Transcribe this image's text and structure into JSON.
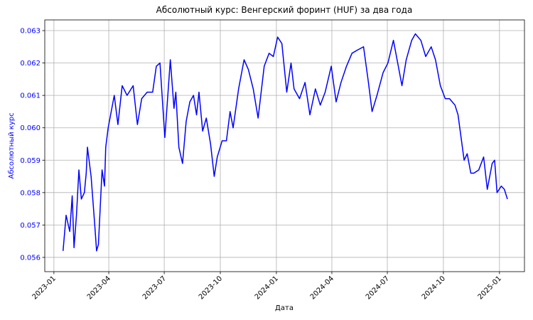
{
  "chart_data": {
    "type": "line",
    "title": "Абсолютный курс: Венгерский форинт (HUF) за два года",
    "x_label": "Дата",
    "y_label": "Абсолютный курс",
    "color": "#0000ff",
    "axis_label_color": "#0000ff",
    "grid": true,
    "x": [
      "2023-01-16",
      "2023-01-21",
      "2023-01-27",
      "2023-01-31",
      "2023-02-03",
      "2023-02-07",
      "2023-02-11",
      "2023-02-15",
      "2023-02-20",
      "2023-02-23",
      "2023-02-25",
      "2023-03-03",
      "2023-03-09",
      "2023-03-12",
      "2023-03-15",
      "2023-03-21",
      "2023-03-25",
      "2023-03-27",
      "2023-03-31",
      "2023-04-04",
      "2023-04-10",
      "2023-04-16",
      "2023-04-23",
      "2023-05-01",
      "2023-05-11",
      "2023-05-18",
      "2023-05-25",
      "2023-06-03",
      "2023-06-12",
      "2023-06-18",
      "2023-06-24",
      "2023-07-02",
      "2023-07-11",
      "2023-07-17",
      "2023-07-20",
      "2023-07-25",
      "2023-07-31",
      "2023-08-06",
      "2023-08-12",
      "2023-08-18",
      "2023-08-23",
      "2023-08-27",
      "2023-09-02",
      "2023-09-08",
      "2023-09-15",
      "2023-09-21",
      "2023-09-26",
      "2023-10-04",
      "2023-10-11",
      "2023-10-17",
      "2023-10-22",
      "2023-10-31",
      "2023-11-09",
      "2023-11-16",
      "2023-11-24",
      "2023-12-02",
      "2023-12-12",
      "2023-12-20",
      "2023-12-27",
      "2024-01-03",
      "2024-01-10",
      "2024-01-18",
      "2024-01-25",
      "2024-01-30",
      "2024-02-08",
      "2024-02-17",
      "2024-02-25",
      "2024-03-05",
      "2024-03-13",
      "2024-03-21",
      "2024-03-31",
      "2024-04-08",
      "2024-04-16",
      "2024-04-25",
      "2024-05-04",
      "2024-05-13",
      "2024-05-23",
      "2024-05-31",
      "2024-06-06",
      "2024-06-14",
      "2024-06-24",
      "2024-07-02",
      "2024-07-11",
      "2024-07-19",
      "2024-07-25",
      "2024-08-01",
      "2024-08-10",
      "2024-08-16",
      "2024-08-25",
      "2024-09-02",
      "2024-09-11",
      "2024-09-18",
      "2024-09-26",
      "2024-10-04",
      "2024-10-11",
      "2024-10-20",
      "2024-10-25",
      "2024-11-04",
      "2024-11-09",
      "2024-11-15",
      "2024-11-20",
      "2024-11-28",
      "2024-12-06",
      "2024-12-12",
      "2024-12-20",
      "2024-12-24",
      "2024-12-28",
      "2025-01-04",
      "2025-01-09",
      "2025-01-14"
    ],
    "values": [
      0.0562,
      0.0573,
      0.0568,
      0.0579,
      0.0563,
      0.0573,
      0.0587,
      0.0578,
      0.058,
      0.0586,
      0.0594,
      0.0585,
      0.057,
      0.0562,
      0.0564,
      0.0587,
      0.0582,
      0.0594,
      0.06,
      0.0604,
      0.061,
      0.0601,
      0.0613,
      0.061,
      0.0613,
      0.0601,
      0.0609,
      0.0611,
      0.0611,
      0.0619,
      0.062,
      0.0597,
      0.0621,
      0.0606,
      0.0611,
      0.0594,
      0.0589,
      0.0602,
      0.0608,
      0.061,
      0.0604,
      0.0611,
      0.0599,
      0.0603,
      0.0595,
      0.0585,
      0.0591,
      0.0596,
      0.0596,
      0.0605,
      0.06,
      0.0612,
      0.0621,
      0.0618,
      0.0612,
      0.0603,
      0.0619,
      0.0623,
      0.0622,
      0.0628,
      0.0626,
      0.0611,
      0.062,
      0.0612,
      0.0609,
      0.0614,
      0.0604,
      0.0612,
      0.0607,
      0.0611,
      0.0619,
      0.0608,
      0.0614,
      0.0619,
      0.0623,
      0.0624,
      0.0625,
      0.0614,
      0.0605,
      0.061,
      0.0617,
      0.062,
      0.0627,
      0.0619,
      0.0613,
      0.0621,
      0.0627,
      0.0629,
      0.0627,
      0.0622,
      0.0625,
      0.0621,
      0.0613,
      0.0609,
      0.0609,
      0.0607,
      0.0604,
      0.059,
      0.0592,
      0.0586,
      0.0586,
      0.0587,
      0.0591,
      0.0581,
      0.0589,
      0.059,
      0.058,
      0.0582,
      0.0581,
      0.0578
    ],
    "xlim": [
      "2022-12-17",
      "2025-02-11"
    ],
    "xticks": [
      {
        "value": "2023-01-01",
        "label": "2023-01"
      },
      {
        "value": "2023-04-01",
        "label": "2023-04"
      },
      {
        "value": "2023-07-01",
        "label": "2023-07"
      },
      {
        "value": "2023-10-01",
        "label": "2023-10"
      },
      {
        "value": "2024-01-01",
        "label": "2024-01"
      },
      {
        "value": "2024-04-01",
        "label": "2024-04"
      },
      {
        "value": "2024-07-01",
        "label": "2024-07"
      },
      {
        "value": "2024-10-01",
        "label": "2024-10"
      },
      {
        "value": "2025-01-01",
        "label": "2025-01"
      }
    ],
    "ylim": [
      0.05556,
      0.06333
    ],
    "yticks": [
      0.056,
      0.057,
      0.058,
      0.059,
      {
        "value": 0.06,
        "label": "0.060"
      },
      0.061,
      0.062,
      0.063
    ]
  }
}
